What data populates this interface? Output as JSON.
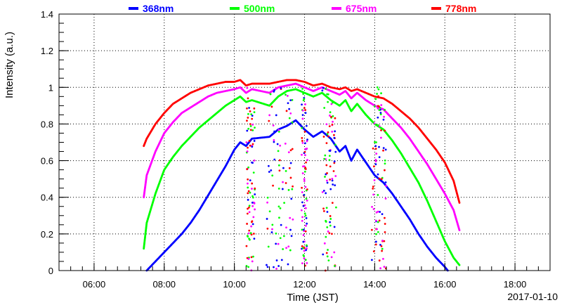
{
  "chart_data": {
    "type": "scatter",
    "title": "",
    "xlabel": "Time (JST)",
    "ylabel": "Intensity (a.u.)",
    "date": "2017-01-10",
    "xlim": [
      "05:00",
      "19:00"
    ],
    "ylim": [
      0,
      1.4
    ],
    "grid": true,
    "legend_position": "top",
    "x_ticks": [
      "06:00",
      "08:00",
      "10:00",
      "12:00",
      "14:00",
      "16:00",
      "18:00"
    ],
    "y_ticks": [
      "0",
      "0.2",
      "0.4",
      "0.6",
      "0.8",
      "1",
      "1.2",
      "1.4"
    ],
    "series": [
      {
        "name": "368nm",
        "color": "#0000ff",
        "points": [
          [
            "07:30",
            0.0
          ],
          [
            "07:45",
            0.05
          ],
          [
            "08:00",
            0.1
          ],
          [
            "08:15",
            0.15
          ],
          [
            "08:30",
            0.2
          ],
          [
            "08:45",
            0.26
          ],
          [
            "09:00",
            0.33
          ],
          [
            "09:15",
            0.41
          ],
          [
            "09:30",
            0.49
          ],
          [
            "09:45",
            0.57
          ],
          [
            "10:00",
            0.66
          ],
          [
            "10:10",
            0.7
          ],
          [
            "10:20",
            0.68
          ],
          [
            "10:30",
            0.72
          ],
          [
            "11:00",
            0.73
          ],
          [
            "11:15",
            0.77
          ],
          [
            "11:30",
            0.79
          ],
          [
            "11:45",
            0.82
          ],
          [
            "12:00",
            0.77
          ],
          [
            "12:15",
            0.73
          ],
          [
            "12:30",
            0.76
          ],
          [
            "12:45",
            0.72
          ],
          [
            "13:00",
            0.65
          ],
          [
            "13:10",
            0.68
          ],
          [
            "13:20",
            0.6
          ],
          [
            "13:30",
            0.66
          ],
          [
            "13:45",
            0.59
          ],
          [
            "14:00",
            0.52
          ],
          [
            "14:15",
            0.48
          ],
          [
            "14:30",
            0.42
          ],
          [
            "14:45",
            0.35
          ],
          [
            "15:00",
            0.28
          ],
          [
            "15:15",
            0.2
          ],
          [
            "15:30",
            0.13
          ],
          [
            "15:45",
            0.07
          ],
          [
            "16:00",
            0.02
          ],
          [
            "16:05",
            0.0
          ]
        ]
      },
      {
        "name": "500nm",
        "color": "#00ff00",
        "points": [
          [
            "07:25",
            0.12
          ],
          [
            "07:30",
            0.26
          ],
          [
            "07:45",
            0.42
          ],
          [
            "08:00",
            0.55
          ],
          [
            "08:15",
            0.62
          ],
          [
            "08:30",
            0.68
          ],
          [
            "08:45",
            0.73
          ],
          [
            "09:00",
            0.78
          ],
          [
            "09:15",
            0.82
          ],
          [
            "09:30",
            0.86
          ],
          [
            "09:45",
            0.9
          ],
          [
            "10:00",
            0.93
          ],
          [
            "10:10",
            0.95
          ],
          [
            "10:20",
            0.92
          ],
          [
            "10:30",
            0.93
          ],
          [
            "11:00",
            0.9
          ],
          [
            "11:15",
            0.95
          ],
          [
            "11:30",
            0.98
          ],
          [
            "11:45",
            0.99
          ],
          [
            "12:00",
            0.97
          ],
          [
            "12:15",
            0.95
          ],
          [
            "12:30",
            0.97
          ],
          [
            "12:45",
            0.93
          ],
          [
            "13:00",
            0.9
          ],
          [
            "13:10",
            0.93
          ],
          [
            "13:20",
            0.87
          ],
          [
            "13:30",
            0.91
          ],
          [
            "13:45",
            0.85
          ],
          [
            "14:00",
            0.8
          ],
          [
            "14:15",
            0.77
          ],
          [
            "14:30",
            0.71
          ],
          [
            "14:45",
            0.64
          ],
          [
            "15:00",
            0.56
          ],
          [
            "15:15",
            0.48
          ],
          [
            "15:30",
            0.38
          ],
          [
            "15:45",
            0.27
          ],
          [
            "16:00",
            0.16
          ],
          [
            "16:15",
            0.07
          ],
          [
            "16:25",
            0.03
          ]
        ]
      },
      {
        "name": "675nm",
        "color": "#ff00ff",
        "points": [
          [
            "07:25",
            0.4
          ],
          [
            "07:30",
            0.52
          ],
          [
            "07:45",
            0.65
          ],
          [
            "08:00",
            0.75
          ],
          [
            "08:15",
            0.81
          ],
          [
            "08:30",
            0.86
          ],
          [
            "08:45",
            0.89
          ],
          [
            "09:00",
            0.92
          ],
          [
            "09:15",
            0.95
          ],
          [
            "09:30",
            0.97
          ],
          [
            "09:45",
            0.98
          ],
          [
            "10:00",
            0.99
          ],
          [
            "10:10",
            1.0
          ],
          [
            "10:20",
            0.97
          ],
          [
            "10:30",
            0.99
          ],
          [
            "11:00",
            0.97
          ],
          [
            "11:15",
            1.0
          ],
          [
            "11:30",
            1.01
          ],
          [
            "11:45",
            1.02
          ],
          [
            "12:00",
            1.0
          ],
          [
            "12:15",
            0.98
          ],
          [
            "12:30",
            1.0
          ],
          [
            "12:45",
            0.98
          ],
          [
            "13:00",
            0.96
          ],
          [
            "13:10",
            0.98
          ],
          [
            "13:20",
            0.94
          ],
          [
            "13:30",
            0.97
          ],
          [
            "13:45",
            0.93
          ],
          [
            "14:00",
            0.9
          ],
          [
            "14:15",
            0.88
          ],
          [
            "14:30",
            0.83
          ],
          [
            "14:45",
            0.78
          ],
          [
            "15:00",
            0.72
          ],
          [
            "15:15",
            0.65
          ],
          [
            "15:30",
            0.58
          ],
          [
            "15:45",
            0.5
          ],
          [
            "16:00",
            0.42
          ],
          [
            "16:15",
            0.33
          ],
          [
            "16:25",
            0.22
          ]
        ]
      },
      {
        "name": "778nm",
        "color": "#ff0000",
        "points": [
          [
            "07:25",
            0.68
          ],
          [
            "07:30",
            0.72
          ],
          [
            "07:45",
            0.8
          ],
          [
            "08:00",
            0.86
          ],
          [
            "08:15",
            0.91
          ],
          [
            "08:30",
            0.94
          ],
          [
            "08:45",
            0.97
          ],
          [
            "09:00",
            0.99
          ],
          [
            "09:15",
            1.01
          ],
          [
            "09:30",
            1.02
          ],
          [
            "09:45",
            1.03
          ],
          [
            "10:00",
            1.03
          ],
          [
            "10:10",
            1.04
          ],
          [
            "10:20",
            1.01
          ],
          [
            "10:30",
            1.02
          ],
          [
            "11:00",
            1.02
          ],
          [
            "11:15",
            1.03
          ],
          [
            "11:30",
            1.04
          ],
          [
            "11:45",
            1.04
          ],
          [
            "12:00",
            1.03
          ],
          [
            "12:15",
            1.01
          ],
          [
            "12:30",
            1.02
          ],
          [
            "12:45",
            1.0
          ],
          [
            "13:00",
            0.99
          ],
          [
            "13:10",
            1.0
          ],
          [
            "13:20",
            0.98
          ],
          [
            "13:30",
            0.99
          ],
          [
            "13:45",
            0.97
          ],
          [
            "14:00",
            0.95
          ],
          [
            "14:15",
            0.94
          ],
          [
            "14:30",
            0.91
          ],
          [
            "14:45",
            0.87
          ],
          [
            "15:00",
            0.83
          ],
          [
            "15:15",
            0.78
          ],
          [
            "15:30",
            0.72
          ],
          [
            "15:45",
            0.66
          ],
          [
            "16:00",
            0.59
          ],
          [
            "16:15",
            0.49
          ],
          [
            "16:25",
            0.37
          ]
        ]
      }
    ]
  }
}
